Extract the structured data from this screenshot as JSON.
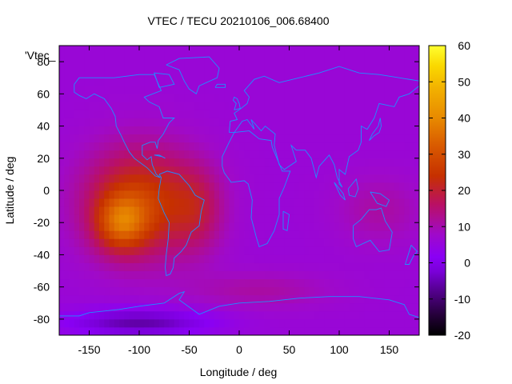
{
  "chart_data": {
    "type": "heatmap",
    "title": "VTEC / TECU 20210106_006.68400",
    "xlabel": "Longitude / deg",
    "ylabel": "Latitude / deg",
    "series_key": "'Vtec_",
    "xlim": [
      -180,
      180
    ],
    "ylim": [
      -90,
      90
    ],
    "x_ticks": [
      -150,
      -100,
      -50,
      0,
      50,
      100,
      150
    ],
    "y_ticks": [
      -80,
      -60,
      -40,
      -20,
      0,
      20,
      40,
      60,
      80
    ],
    "colorbar": {
      "range": [
        -20,
        60
      ],
      "ticks": [
        -20,
        -10,
        0,
        10,
        20,
        30,
        40,
        50,
        60
      ]
    },
    "grid_step_deg": 5,
    "blobs": [
      {
        "lon": -98,
        "lat": -7,
        "sx": 40,
        "sy": 24,
        "amp": 20
      },
      {
        "lon": -118,
        "lat": -20,
        "sx": 18,
        "sy": 12,
        "amp": 18
      },
      {
        "lon": -42,
        "lat": -12,
        "sx": 18,
        "sy": 18,
        "amp": 8
      },
      {
        "lon": 140,
        "lat": -12,
        "sx": 30,
        "sy": 15,
        "amp": 5
      },
      {
        "lon": 20,
        "lat": -62,
        "sx": 50,
        "sy": 8,
        "amp": 5
      },
      {
        "lon": -100,
        "lat": -82,
        "sx": 50,
        "sy": 6,
        "amp": -12
      }
    ],
    "base_value": 6,
    "background_value": 4,
    "coastline_color": "#1e90ff",
    "frame_color": "#000000"
  },
  "coastlines": [
    {
      "name": "north-america",
      "points": [
        [
          -165,
          66
        ],
        [
          -160,
          70
        ],
        [
          -140,
          70
        ],
        [
          -125,
          70
        ],
        [
          -100,
          72
        ],
        [
          -85,
          72
        ],
        [
          -78,
          62
        ],
        [
          -95,
          58
        ],
        [
          -90,
          55
        ],
        [
          -80,
          52
        ],
        [
          -76,
          45
        ],
        [
          -65,
          45
        ],
        [
          -70,
          42
        ],
        [
          -76,
          35
        ],
        [
          -81,
          31
        ],
        [
          -82,
          26
        ],
        [
          -84,
          30
        ],
        [
          -89,
          30
        ],
        [
          -97,
          28
        ],
        [
          -97,
          22
        ],
        [
          -92,
          19
        ],
        [
          -88,
          21
        ],
        [
          -87,
          16
        ],
        [
          -83,
          10
        ],
        [
          -79,
          8
        ],
        [
          -84,
          9
        ],
        [
          -92,
          14
        ],
        [
          -105,
          20
        ],
        [
          -110,
          24
        ],
        [
          -115,
          30
        ],
        [
          -118,
          34
        ],
        [
          -123,
          40
        ],
        [
          -124,
          46
        ],
        [
          -128,
          51
        ],
        [
          -135,
          57
        ],
        [
          -145,
          60
        ],
        [
          -153,
          57
        ],
        [
          -160,
          59
        ],
        [
          -165,
          61
        ],
        [
          -165,
          66
        ]
      ]
    },
    {
      "name": "greenland",
      "points": [
        [
          -73,
          78
        ],
        [
          -60,
          82
        ],
        [
          -30,
          83
        ],
        [
          -20,
          76
        ],
        [
          -22,
          70
        ],
        [
          -40,
          65
        ],
        [
          -43,
          60
        ],
        [
          -50,
          63
        ],
        [
          -55,
          68
        ],
        [
          -60,
          75
        ],
        [
          -73,
          78
        ]
      ]
    },
    {
      "name": "south-america",
      "points": [
        [
          -80,
          10
        ],
        [
          -72,
          12
        ],
        [
          -60,
          10
        ],
        [
          -50,
          3
        ],
        [
          -44,
          -3
        ],
        [
          -35,
          -6
        ],
        [
          -38,
          -13
        ],
        [
          -40,
          -22
        ],
        [
          -48,
          -26
        ],
        [
          -53,
          -34
        ],
        [
          -58,
          -38
        ],
        [
          -65,
          -42
        ],
        [
          -66,
          -48
        ],
        [
          -69,
          -52
        ],
        [
          -73,
          -53
        ],
        [
          -74,
          -48
        ],
        [
          -73,
          -40
        ],
        [
          -71,
          -30
        ],
        [
          -70,
          -20
        ],
        [
          -75,
          -14
        ],
        [
          -81,
          -5
        ],
        [
          -80,
          1
        ],
        [
          -78,
          8
        ],
        [
          -80,
          10
        ]
      ]
    },
    {
      "name": "eurasia",
      "points": [
        [
          -10,
          36
        ],
        [
          -9,
          43
        ],
        [
          -2,
          44
        ],
        [
          -5,
          48
        ],
        [
          2,
          51
        ],
        [
          8,
          54
        ],
        [
          10,
          58
        ],
        [
          5,
          62
        ],
        [
          15,
          69
        ],
        [
          25,
          71
        ],
        [
          40,
          67
        ],
        [
          60,
          70
        ],
        [
          80,
          73
        ],
        [
          100,
          77
        ],
        [
          120,
          73
        ],
        [
          140,
          72
        ],
        [
          160,
          70
        ],
        [
          180,
          68
        ],
        [
          180,
          65
        ],
        [
          170,
          60
        ],
        [
          160,
          58
        ],
        [
          155,
          52
        ],
        [
          140,
          54
        ],
        [
          135,
          45
        ],
        [
          128,
          38
        ],
        [
          122,
          40
        ],
        [
          122,
          30
        ],
        [
          119,
          25
        ],
        [
          110,
          21
        ],
        [
          106,
          10
        ],
        [
          100,
          13
        ],
        [
          100,
          4
        ],
        [
          103,
          2
        ],
        [
          98,
          8
        ],
        [
          95,
          16
        ],
        [
          90,
          22
        ],
        [
          80,
          15
        ],
        [
          77,
          8
        ],
        [
          72,
          20
        ],
        [
          66,
          25
        ],
        [
          57,
          25
        ],
        [
          52,
          28
        ],
        [
          57,
          18
        ],
        [
          45,
          13
        ],
        [
          40,
          16
        ],
        [
          35,
          28
        ],
        [
          36,
          35
        ],
        [
          26,
          40
        ],
        [
          22,
          37
        ],
        [
          12,
          44
        ],
        [
          15,
          38
        ],
        [
          8,
          44
        ],
        [
          3,
          43
        ],
        [
          -5,
          36
        ],
        [
          -10,
          36
        ]
      ]
    },
    {
      "name": "africa",
      "points": [
        [
          -17,
          15
        ],
        [
          -17,
          21
        ],
        [
          -10,
          30
        ],
        [
          -5,
          36
        ],
        [
          10,
          37
        ],
        [
          20,
          32
        ],
        [
          32,
          31
        ],
        [
          33,
          27
        ],
        [
          43,
          12
        ],
        [
          51,
          12
        ],
        [
          45,
          2
        ],
        [
          40,
          -5
        ],
        [
          40,
          -15
        ],
        [
          35,
          -25
        ],
        [
          28,
          -33
        ],
        [
          20,
          -35
        ],
        [
          17,
          -29
        ],
        [
          12,
          -17
        ],
        [
          13,
          -6
        ],
        [
          9,
          4
        ],
        [
          5,
          6
        ],
        [
          -8,
          5
        ],
        [
          -15,
          11
        ],
        [
          -17,
          15
        ]
      ]
    },
    {
      "name": "madagascar",
      "points": [
        [
          44,
          -13
        ],
        [
          50,
          -15
        ],
        [
          48,
          -25
        ],
        [
          44,
          -24
        ],
        [
          44,
          -13
        ]
      ]
    },
    {
      "name": "australia",
      "points": [
        [
          114,
          -22
        ],
        [
          122,
          -18
        ],
        [
          130,
          -12
        ],
        [
          137,
          -12
        ],
        [
          142,
          -11
        ],
        [
          146,
          -19
        ],
        [
          153,
          -26
        ],
        [
          150,
          -37
        ],
        [
          140,
          -38
        ],
        [
          131,
          -31
        ],
        [
          117,
          -35
        ],
        [
          114,
          -30
        ],
        [
          114,
          -22
        ]
      ]
    },
    {
      "name": "new-zealand",
      "points": [
        [
          172,
          -34
        ],
        [
          178,
          -38
        ],
        [
          174,
          -41
        ],
        [
          170,
          -46
        ],
        [
          166,
          -46
        ],
        [
          172,
          -34
        ]
      ]
    },
    {
      "name": "antarctica",
      "points": [
        [
          -180,
          -85
        ],
        [
          -180,
          -78
        ],
        [
          -160,
          -78
        ],
        [
          -150,
          -76
        ],
        [
          -120,
          -74
        ],
        [
          -100,
          -72
        ],
        [
          -75,
          -70
        ],
        [
          -60,
          -64
        ],
        [
          -55,
          -63
        ],
        [
          -60,
          -68
        ],
        [
          -40,
          -77
        ],
        [
          -20,
          -72
        ],
        [
          0,
          -70
        ],
        [
          30,
          -69
        ],
        [
          60,
          -67
        ],
        [
          90,
          -66
        ],
        [
          120,
          -66
        ],
        [
          150,
          -68
        ],
        [
          165,
          -71
        ],
        [
          170,
          -77
        ],
        [
          180,
          -79
        ],
        [
          180,
          -85
        ]
      ]
    },
    {
      "name": "british-isles",
      "points": [
        [
          -5,
          50
        ],
        [
          1,
          51
        ],
        [
          0,
          54
        ],
        [
          -2,
          57
        ],
        [
          -5,
          58
        ],
        [
          -6,
          56
        ],
        [
          -3,
          54
        ],
        [
          -5,
          50
        ]
      ]
    },
    {
      "name": "iceland",
      "points": [
        [
          -24,
          64
        ],
        [
          -14,
          64
        ],
        [
          -14,
          66
        ],
        [
          -22,
          66
        ],
        [
          -24,
          64
        ]
      ]
    },
    {
      "name": "japan",
      "points": [
        [
          130,
          31
        ],
        [
          135,
          34
        ],
        [
          140,
          36
        ],
        [
          142,
          40
        ],
        [
          141,
          45
        ],
        [
          139,
          40
        ],
        [
          133,
          35
        ],
        [
          130,
          31
        ]
      ]
    },
    {
      "name": "borneo",
      "points": [
        [
          109,
          1
        ],
        [
          117,
          7
        ],
        [
          119,
          1
        ],
        [
          116,
          -4
        ],
        [
          110,
          -3
        ],
        [
          109,
          1
        ]
      ]
    },
    {
      "name": "new-guinea",
      "points": [
        [
          131,
          -1
        ],
        [
          141,
          -2
        ],
        [
          150,
          -6
        ],
        [
          147,
          -10
        ],
        [
          138,
          -8
        ],
        [
          131,
          -1
        ]
      ]
    },
    {
      "name": "sumatra",
      "points": [
        [
          95,
          5
        ],
        [
          104,
          -2
        ],
        [
          106,
          -6
        ],
        [
          101,
          -3
        ],
        [
          95,
          5
        ]
      ]
    },
    {
      "name": "baffin",
      "points": [
        [
          -80,
          64
        ],
        [
          -65,
          66
        ],
        [
          -70,
          72
        ],
        [
          -85,
          73
        ],
        [
          -80,
          64
        ]
      ]
    },
    {
      "name": "cuba",
      "points": [
        [
          -85,
          22
        ],
        [
          -77,
          21
        ],
        [
          -74,
          20
        ],
        [
          -80,
          22
        ],
        [
          -85,
          22
        ]
      ]
    }
  ]
}
